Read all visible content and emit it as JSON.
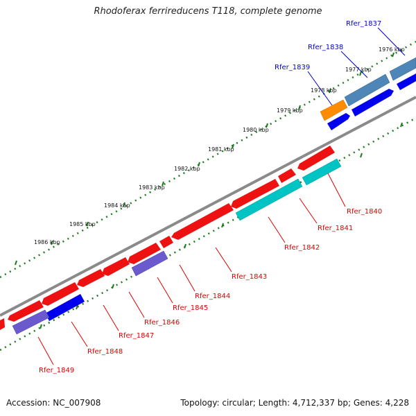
{
  "header": {
    "title": "Rhodoferax ferrireducens T118, complete genome"
  },
  "footer": {
    "accession": "Accession: NC_007908",
    "topology": "Topology: circular; Length: 4,712,337 bp; Genes: 4,228"
  },
  "colors": {
    "backbone": "#888888",
    "tick": "#1f7a1f",
    "label_forward": "#0000cc",
    "label_reverse": "#dd0000",
    "gene_red": "#ee0000",
    "gene_blue": "#0000ee",
    "gene_steel": "#4682b4",
    "gene_orange": "#ff8c00",
    "gene_cyan": "#00c8c8",
    "gene_purple": "#6a5acd"
  },
  "kbp_labels": [
    "1976 kbp",
    "1977 kbp",
    "1978 kbp",
    "1979 kbp",
    "1980 kbp",
    "1981 kbp",
    "1982 kbp",
    "1983 kbp",
    "1984 kbp",
    "1985 kbp",
    "1986 kbp"
  ],
  "genes": [
    {
      "id": "Rfer_1837",
      "label_color": "blue"
    },
    {
      "id": "Rfer_1838",
      "label_color": "blue"
    },
    {
      "id": "Rfer_1839",
      "label_color": "blue"
    },
    {
      "id": "Rfer_1840",
      "label_color": "red"
    },
    {
      "id": "Rfer_1841",
      "label_color": "red"
    },
    {
      "id": "Rfer_1842",
      "label_color": "red"
    },
    {
      "id": "Rfer_1843",
      "label_color": "red"
    },
    {
      "id": "Rfer_1844",
      "label_color": "red"
    },
    {
      "id": "Rfer_1845",
      "label_color": "red"
    },
    {
      "id": "Rfer_1846",
      "label_color": "red"
    },
    {
      "id": "Rfer_1847",
      "label_color": "red"
    },
    {
      "id": "Rfer_1848",
      "label_color": "red"
    },
    {
      "id": "Rfer_1849",
      "label_color": "red"
    }
  ]
}
